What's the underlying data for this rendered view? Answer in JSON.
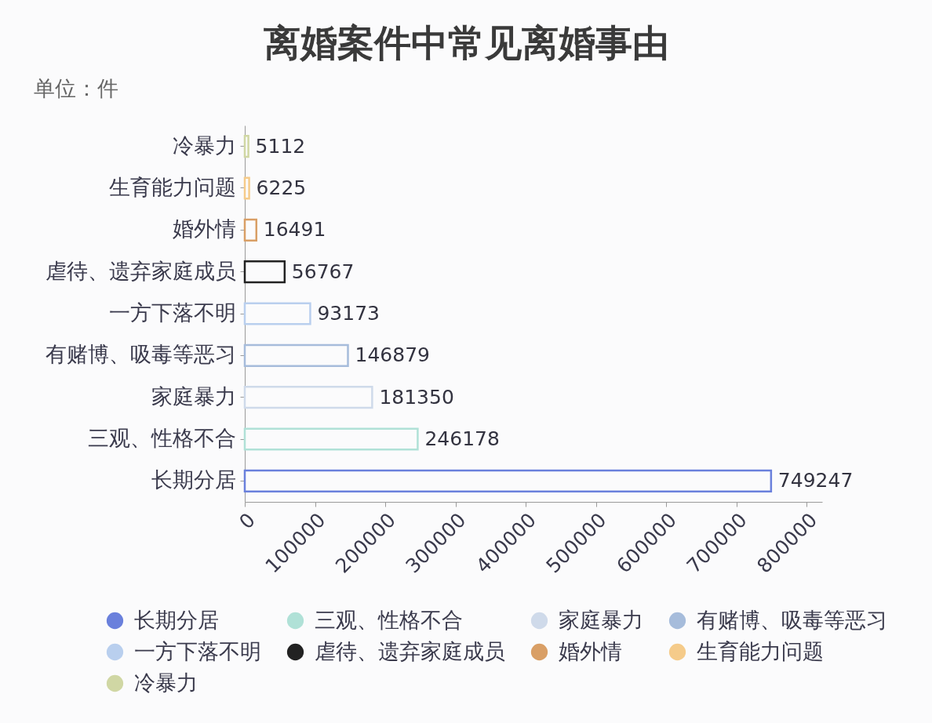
{
  "chart_data": {
    "type": "bar",
    "orientation": "horizontal",
    "title": "离婚案件中常见离婚事由",
    "subtitle": "单位：件",
    "categories": [
      "冷暴力",
      "生育能力问题",
      "婚外情",
      "虐待、遗弃家庭成员",
      "一方下落不明",
      "有赌博、吸毒等恶习",
      "家庭暴力",
      "三观、性格不合",
      "长期分居"
    ],
    "series": [
      {
        "name": "长期分居",
        "color": "#6a80dc",
        "values": [
          null,
          null,
          null,
          null,
          null,
          null,
          null,
          null,
          749247
        ]
      },
      {
        "name": "三观、性格不合",
        "color": "#b0e1d7",
        "values": [
          null,
          null,
          null,
          null,
          null,
          null,
          null,
          246178,
          null
        ]
      },
      {
        "name": "家庭暴力",
        "color": "#cfdaea",
        "values": [
          null,
          null,
          null,
          null,
          null,
          null,
          181350,
          null,
          null
        ]
      },
      {
        "name": "有赌博、吸毒等恶习",
        "color": "#a6bcdb",
        "values": [
          null,
          null,
          null,
          null,
          null,
          146879,
          null,
          null,
          null
        ]
      },
      {
        "name": "一方下落不明",
        "color": "#b9cfee",
        "values": [
          null,
          null,
          null,
          null,
          93173,
          null,
          null,
          null,
          null
        ]
      },
      {
        "name": "虐待、遗弃家庭成员",
        "color": "#222222",
        "values": [
          null,
          null,
          null,
          56767,
          null,
          null,
          null,
          null,
          null
        ]
      },
      {
        "name": "婚外情",
        "color": "#d99f66",
        "values": [
          null,
          null,
          16491,
          null,
          null,
          null,
          null,
          null,
          null
        ]
      },
      {
        "name": "生育能力问题",
        "color": "#f5cb8a",
        "values": [
          null,
          6225,
          null,
          null,
          null,
          null,
          null,
          null,
          null
        ]
      },
      {
        "name": "冷暴力",
        "color": "#d0d7a4",
        "values": [
          5112,
          null,
          null,
          null,
          null,
          null,
          null,
          null,
          null
        ]
      }
    ],
    "xlim": [
      0,
      822000
    ],
    "xticks": [
      0,
      100000,
      200000,
      300000,
      400000,
      500000,
      600000,
      700000,
      800000
    ],
    "data_labels": true,
    "grid": false,
    "legend": "bottom"
  }
}
